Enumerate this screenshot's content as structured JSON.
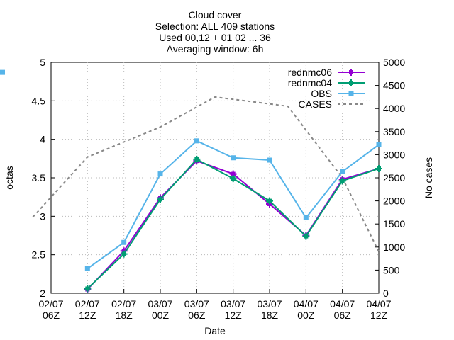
{
  "chart_data": {
    "type": "line",
    "title_lines": [
      "Cloud cover",
      "Selection: ALL    409 stations",
      "Used 00,12 + 01 02 ... 36",
      "Averaging window:  6h"
    ],
    "xlabel": "Date",
    "ylabel": "octas",
    "y2label": "No cases",
    "ylim": [
      2,
      5
    ],
    "y2lim": [
      0,
      5000
    ],
    "yticks": [
      "2",
      "2.5",
      "3",
      "3.5",
      "4",
      "4.5",
      "5"
    ],
    "y2ticks": [
      "0",
      "500",
      "1000",
      "1500",
      "2000",
      "2500",
      "3000",
      "3500",
      "4000",
      "4500",
      "5000"
    ],
    "xticks": [
      [
        "02/07",
        "06Z"
      ],
      [
        "02/07",
        "12Z"
      ],
      [
        "02/07",
        "18Z"
      ],
      [
        "03/07",
        "00Z"
      ],
      [
        "03/07",
        "06Z"
      ],
      [
        "03/07",
        "12Z"
      ],
      [
        "03/07",
        "18Z"
      ],
      [
        "04/07",
        "00Z"
      ],
      [
        "04/07",
        "06Z"
      ],
      [
        "04/07",
        "12Z"
      ]
    ],
    "x_hours": [
      3,
      9,
      15,
      21,
      27,
      33,
      39,
      45,
      51,
      57
    ],
    "series": [
      {
        "name": "rednmc06",
        "color": "#9400d3",
        "marker": "plus-square",
        "axis": "y1",
        "values": [
          2.05,
          2.55,
          3.24,
          3.72,
          3.55,
          3.16,
          2.75,
          3.48,
          3.62,
          4.87
        ]
      },
      {
        "name": "rednmc04",
        "color": "#009e73",
        "marker": "plus-square",
        "axis": "y1",
        "values": [
          2.06,
          2.51,
          3.22,
          3.74,
          3.49,
          3.2,
          2.74,
          3.46,
          3.62,
          4.87
        ]
      },
      {
        "name": "OBS",
        "color": "#56b4e9",
        "marker": "square",
        "axis": "y1",
        "values": [
          2.32,
          2.66,
          3.55,
          3.98,
          3.76,
          3.73,
          2.98,
          3.58,
          3.93,
          4.87
        ]
      },
      {
        "name": "CASES",
        "color": "#888888",
        "marker": "none",
        "axis": "y2",
        "dashed": true,
        "x_hours": [
          0,
          9,
          21,
          30,
          42,
          51,
          57
        ],
        "values": [
          1650,
          2950,
          3600,
          4250,
          4050,
          2500,
          900
        ]
      }
    ],
    "grid": true,
    "legend_position": "top-right"
  }
}
